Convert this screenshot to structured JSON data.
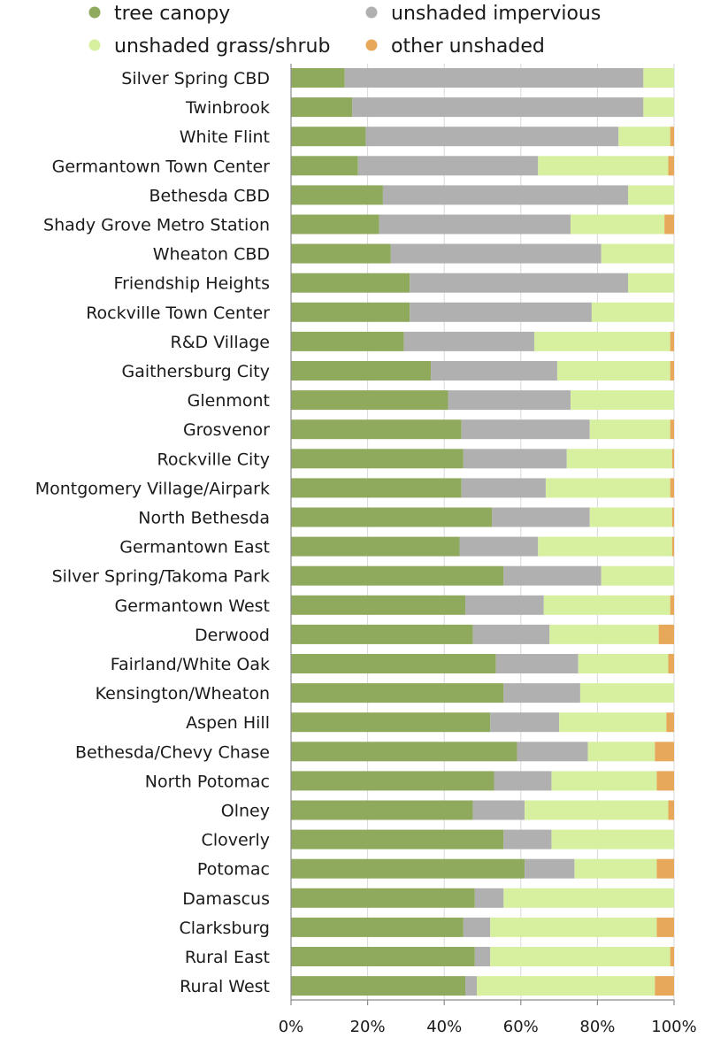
{
  "chart_data": {
    "type": "bar",
    "orientation": "horizontal",
    "stacked": true,
    "normalized": true,
    "title": "",
    "xlabel": "",
    "ylabel": "",
    "xlim": [
      0,
      100
    ],
    "x_ticks": [
      "0%",
      "20%",
      "40%",
      "60%",
      "80%",
      "100%"
    ],
    "legend_position": "top",
    "grid": "vertical gridlines at tick values",
    "categories": [
      "Silver Spring CBD",
      "Twinbrook",
      "White Flint",
      "Germantown Town Center",
      "Bethesda CBD",
      "Shady Grove Metro Station",
      "Wheaton CBD",
      "Friendship Heights",
      "Rockville Town Center",
      "R&D Village",
      "Gaithersburg City",
      "Glenmont",
      "Grosvenor",
      "Rockville City",
      "Montgomery Village/Airpark",
      "North Bethesda",
      "Germantown East",
      "Silver Spring/Takoma Park",
      "Germantown West",
      "Derwood",
      "Fairland/White Oak",
      "Kensington/Wheaton",
      "Aspen Hill",
      "Bethesda/Chevy Chase",
      "North Potomac",
      "Olney",
      "Cloverly",
      "Potomac",
      "Damascus",
      "Clarksburg",
      "Rural East",
      "Rural West"
    ],
    "series": [
      {
        "name": "tree canopy",
        "color": "#8faa5c",
        "values": [
          14,
          16,
          19.5,
          17.5,
          24,
          23,
          26,
          31,
          31,
          29.5,
          36.5,
          41,
          44.5,
          45,
          44.5,
          52.5,
          44,
          55.5,
          45.5,
          47.5,
          53.5,
          55.5,
          52,
          59,
          53,
          47.5,
          55.5,
          61,
          48,
          45,
          48,
          45.5
        ]
      },
      {
        "name": "unshaded impervious",
        "color": "#b0b0b0",
        "values": [
          78,
          76,
          66,
          47,
          64,
          50,
          55,
          57,
          47.5,
          34,
          33,
          32,
          33.5,
          27,
          22,
          25.5,
          20.5,
          25.5,
          20.5,
          20,
          21.5,
          20,
          18,
          18.5,
          15,
          13.5,
          12.5,
          13,
          7.5,
          7,
          4,
          3
        ]
      },
      {
        "name": "unshaded grass/shrub",
        "color": "#d6f0a0",
        "values": [
          8,
          8,
          13.5,
          34,
          12,
          24.5,
          19,
          12,
          21.5,
          35.5,
          29.5,
          27,
          21,
          27.5,
          32.5,
          21.5,
          35,
          19,
          33,
          28.5,
          23.5,
          24.5,
          28,
          17.5,
          27.5,
          37.5,
          32,
          21.5,
          44.5,
          43.5,
          47,
          46.5
        ]
      },
      {
        "name": "other unshaded",
        "color": "#e8a85a",
        "values": [
          0,
          0,
          1,
          1.5,
          0,
          2.5,
          0,
          0,
          0,
          1,
          1,
          0,
          1,
          0.5,
          1,
          0.5,
          0.5,
          0,
          1,
          4,
          1.5,
          0,
          2,
          5,
          4.5,
          1.5,
          0,
          4.5,
          0,
          4.5,
          1,
          5
        ]
      }
    ]
  }
}
